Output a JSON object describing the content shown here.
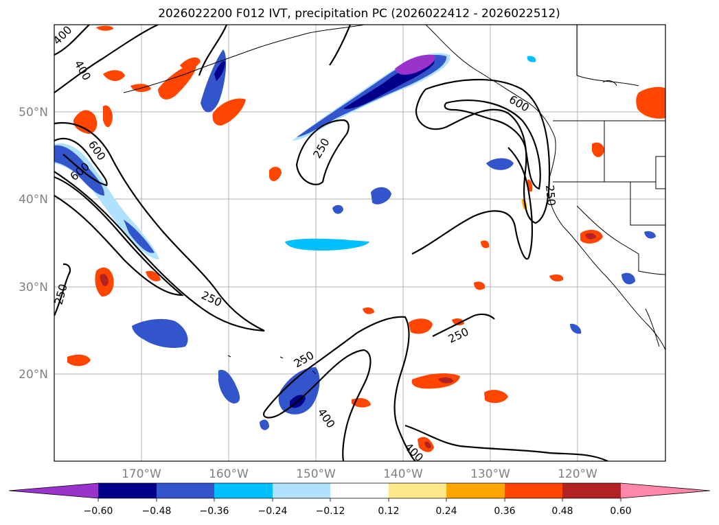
{
  "title": "2026022200 F012 IVT, precipitation PC (2026022412 - 2026022512)",
  "map": {
    "lon_range": [
      -180,
      -110
    ],
    "lat_range": [
      10,
      60
    ],
    "lat_labels": [
      "50°N",
      "40°N",
      "30°N",
      "20°N"
    ],
    "lon_labels": [
      "170°W",
      "160°W",
      "150°W",
      "140°W",
      "130°W",
      "120°W"
    ],
    "ivt_contour_labels": [
      "400",
      "400",
      "600",
      "600",
      "250",
      "250",
      "250",
      "250",
      "250",
      "250",
      "400",
      "400",
      "600"
    ]
  },
  "colorbar": {
    "levels": [
      "−0.60",
      "−0.48",
      "−0.36",
      "−0.24",
      "−0.12",
      "0.12",
      "0.24",
      "0.36",
      "0.48",
      "0.60"
    ],
    "colors": [
      "#9933cc",
      "#00008b",
      "#3355cc",
      "#00bfff",
      "#b0e2ff",
      "#ffffff",
      "#ffe88a",
      "#ffa500",
      "#ff4500",
      "#b22222",
      "#ff88aa"
    ],
    "extend": "both"
  }
}
